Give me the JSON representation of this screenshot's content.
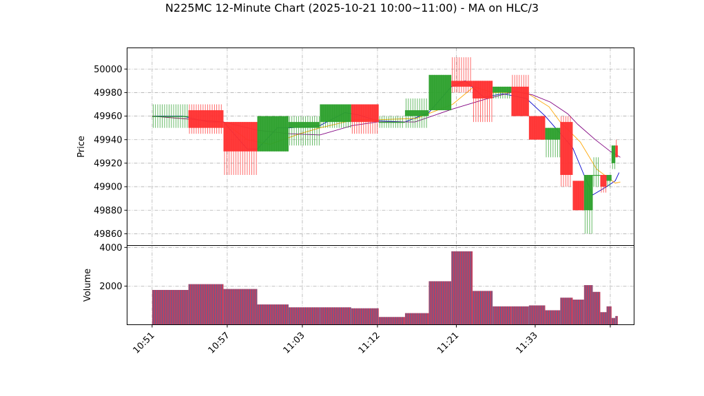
{
  "chart_data": {
    "type": "candlestick",
    "title": "N225MC 12-Minute Chart (2025-10-21 10:00~11:00) - MA on HLC/3",
    "xlabel": "",
    "price_panel": {
      "ylabel": "Price",
      "ylim": [
        49850,
        50018
      ],
      "yticks": [
        "49860",
        "49880",
        "49900",
        "49920",
        "49940",
        "49960",
        "49980",
        "50000"
      ],
      "grid": true
    },
    "volume_panel": {
      "ylabel": "Volume",
      "ylim": [
        0,
        4100
      ],
      "yticks": [
        "2000",
        "4000"
      ],
      "grid": true
    },
    "x_range": [
      -2,
      38.5
    ],
    "xticks": [
      {
        "pos": 0,
        "label": "10:51"
      },
      {
        "pos": 6,
        "label": "10:57"
      },
      {
        "pos": 12,
        "label": "11:03"
      },
      {
        "pos": 18,
        "label": "11:12"
      },
      {
        "pos": 24.3,
        "label": "11:21"
      },
      {
        "pos": 30.6,
        "label": "11:33"
      },
      {
        "pos": 36.6,
        "label": ""
      }
    ],
    "up_color": "#2ca02c",
    "down_color": "#ff3030",
    "volume_color": "#c04060",
    "volume_edge": "#1f77b4",
    "candles": [
      {
        "x0": 0.0,
        "x1": 2.9,
        "open": 49960,
        "high": 49970,
        "low": 49950,
        "close": 49960,
        "volume": 1800
      },
      {
        "x0": 2.9,
        "x1": 5.7,
        "open": 49965,
        "high": 49970,
        "low": 49945,
        "close": 49950,
        "volume": 2100
      },
      {
        "x0": 5.7,
        "x1": 8.4,
        "open": 49955,
        "high": 49955,
        "low": 49910,
        "close": 49930,
        "volume": 1850
      },
      {
        "x0": 8.4,
        "x1": 10.9,
        "open": 49930,
        "high": 49960,
        "low": 49930,
        "close": 49960,
        "volume": 1050
      },
      {
        "x0": 10.9,
        "x1": 13.4,
        "open": 49950,
        "high": 49960,
        "low": 49935,
        "close": 49955,
        "volume": 900
      },
      {
        "x0": 13.4,
        "x1": 15.9,
        "open": 49955,
        "high": 49970,
        "low": 49950,
        "close": 49970,
        "volume": 900
      },
      {
        "x0": 15.9,
        "x1": 18.1,
        "open": 49970,
        "high": 49970,
        "low": 49945,
        "close": 49955,
        "volume": 850
      },
      {
        "x0": 18.1,
        "x1": 20.2,
        "open": 49955,
        "high": 49960,
        "low": 49950,
        "close": 49955,
        "volume": 400
      },
      {
        "x0": 20.2,
        "x1": 22.1,
        "open": 49960,
        "high": 49975,
        "low": 49950,
        "close": 49965,
        "volume": 600
      },
      {
        "x0": 22.1,
        "x1": 23.9,
        "open": 49965,
        "high": 49995,
        "low": 49965,
        "close": 49995,
        "volume": 2250
      },
      {
        "x0": 23.9,
        "x1": 25.6,
        "open": 49990,
        "high": 50010,
        "low": 49980,
        "close": 49985,
        "volume": 3800
      },
      {
        "x0": 25.6,
        "x1": 27.2,
        "open": 49990,
        "high": 49990,
        "low": 49955,
        "close": 49975,
        "volume": 1750
      },
      {
        "x0": 27.2,
        "x1": 28.7,
        "open": 49980,
        "high": 49985,
        "low": 49975,
        "close": 49985,
        "volume": 950
      },
      {
        "x0": 28.7,
        "x1": 30.1,
        "open": 49985,
        "high": 49995,
        "low": 49960,
        "close": 49960,
        "volume": 950
      },
      {
        "x0": 30.1,
        "x1": 31.4,
        "open": 49960,
        "high": 49960,
        "low": 49940,
        "close": 49940,
        "volume": 1000
      },
      {
        "x0": 31.4,
        "x1": 32.6,
        "open": 49940,
        "high": 49950,
        "low": 49925,
        "close": 49950,
        "volume": 750
      },
      {
        "x0": 32.6,
        "x1": 33.6,
        "open": 49955,
        "high": 49960,
        "low": 49900,
        "close": 49910,
        "volume": 1400
      },
      {
        "x0": 33.6,
        "x1": 34.5,
        "open": 49905,
        "high": 49905,
        "low": 49880,
        "close": 49880,
        "volume": 1300
      },
      {
        "x0": 34.5,
        "x1": 35.2,
        "open": 49880,
        "high": 49910,
        "low": 49860,
        "close": 49910,
        "volume": 2050
      },
      {
        "x0": 35.2,
        "x1": 35.8,
        "open": 49910,
        "high": 49925,
        "low": 49900,
        "close": 49910,
        "volume": 1700
      },
      {
        "x0": 35.8,
        "x1": 36.3,
        "open": 49910,
        "high": 49910,
        "low": 49895,
        "close": 49900,
        "volume": 650
      },
      {
        "x0": 36.3,
        "x1": 36.7,
        "open": 49905,
        "high": 49910,
        "low": 49900,
        "close": 49910,
        "volume": 950
      },
      {
        "x0": 36.7,
        "x1": 37.0,
        "open": 49920,
        "high": 49935,
        "low": 49915,
        "close": 49935,
        "volume": 350
      },
      {
        "x0": 37.0,
        "x1": 37.2,
        "open": 49935,
        "high": 49940,
        "low": 49925,
        "close": 49925,
        "volume": 450
      }
    ],
    "ma_lines": [
      {
        "color": "#0000cc",
        "points": [
          [
            0,
            49960
          ],
          [
            2.4,
            49960
          ],
          [
            4.5,
            49955
          ],
          [
            5.7,
            49955
          ],
          [
            7.6,
            49932
          ],
          [
            8.4,
            49932
          ],
          [
            10,
            49950
          ],
          [
            11,
            49950
          ],
          [
            13.4,
            49952
          ],
          [
            15.4,
            49963
          ],
          [
            16.5,
            49961
          ],
          [
            18,
            49956
          ],
          [
            20.2,
            49955
          ],
          [
            22.1,
            49963
          ],
          [
            23.9,
            49985
          ],
          [
            25,
            49990
          ],
          [
            26.5,
            49976
          ],
          [
            28,
            49979
          ],
          [
            29.9,
            49975
          ],
          [
            31.4,
            49960
          ],
          [
            33.6,
            49933
          ],
          [
            34.5,
            49910
          ],
          [
            35.2,
            49893
          ],
          [
            36.3,
            49900
          ],
          [
            37.0,
            49905
          ],
          [
            37.3,
            49912
          ]
        ]
      },
      {
        "color": "#ffa500",
        "points": [
          [
            0,
            49960
          ],
          [
            5.7,
            49955
          ],
          [
            7.6,
            49940
          ],
          [
            9.4,
            49936
          ],
          [
            11.8,
            49945
          ],
          [
            13.4,
            49950
          ],
          [
            16.2,
            49957
          ],
          [
            18.2,
            49957
          ],
          [
            21.1,
            49958
          ],
          [
            24,
            49970
          ],
          [
            25.7,
            49985
          ],
          [
            27.2,
            49980
          ],
          [
            29.9,
            49980
          ],
          [
            31.7,
            49968
          ],
          [
            32.6,
            49955
          ],
          [
            34.2,
            49938
          ],
          [
            35.5,
            49915
          ],
          [
            37.0,
            49903
          ],
          [
            37.4,
            49904
          ]
        ]
      },
      {
        "color": "#800080",
        "points": [
          [
            0,
            49960
          ],
          [
            5.7,
            49955
          ],
          [
            8.4,
            49948
          ],
          [
            11,
            49945
          ],
          [
            13.4,
            49944
          ],
          [
            16,
            49952
          ],
          [
            18,
            49955
          ],
          [
            21,
            49955
          ],
          [
            24,
            49966
          ],
          [
            26.5,
            49974
          ],
          [
            29,
            49981
          ],
          [
            30.4,
            49978
          ],
          [
            31.8,
            49972
          ],
          [
            33.2,
            49962
          ],
          [
            34,
            49953
          ],
          [
            35.4,
            49940
          ],
          [
            36.6,
            49930
          ],
          [
            37.4,
            49925
          ]
        ]
      }
    ]
  }
}
